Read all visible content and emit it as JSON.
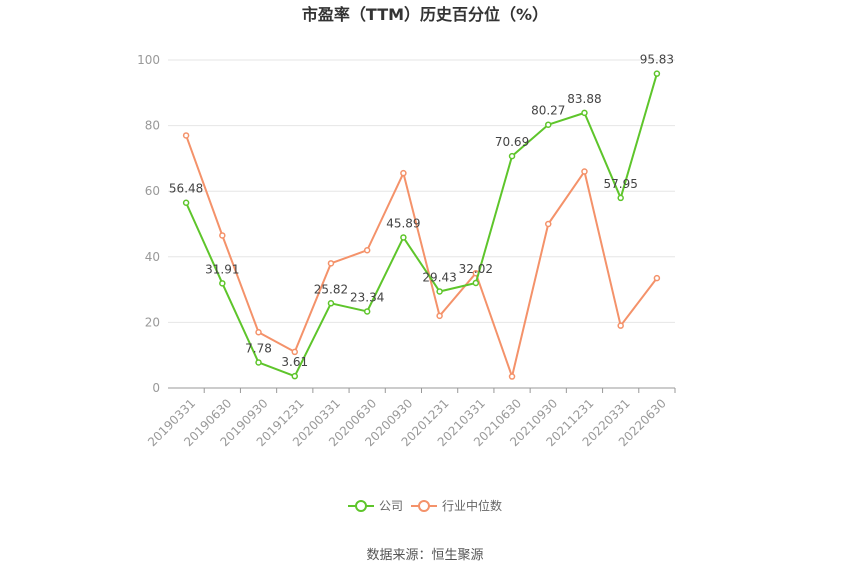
{
  "chart_data": {
    "type": "line",
    "title": "市盈率（TTM）历史百分位（%）",
    "categories": [
      "20190331",
      "20190630",
      "20190930",
      "20191231",
      "20200331",
      "20200630",
      "20200930",
      "20201231",
      "20210331",
      "20210630",
      "20210930",
      "20211231",
      "20220331",
      "20220630"
    ],
    "ylim": [
      0,
      100
    ],
    "yticks": [
      0,
      20,
      40,
      60,
      80,
      100
    ],
    "grid": true,
    "legend_position": "bottom",
    "series": [
      {
        "name": "公司",
        "color": "#5ec52b",
        "values": [
          56.48,
          31.91,
          7.78,
          3.61,
          25.82,
          23.34,
          45.89,
          29.43,
          32.02,
          70.69,
          80.27,
          83.88,
          57.95,
          95.83
        ],
        "labels": [
          "56.48",
          "31.91",
          "7.78",
          "3.61",
          "25.82",
          "23.34",
          "45.89",
          "29.43",
          "32.02",
          "70.69",
          "80.27",
          "83.88",
          "57.95",
          "95.83"
        ]
      },
      {
        "name": "行业中位数",
        "color": "#f4926a",
        "values": [
          77,
          46.5,
          17,
          11,
          38,
          42,
          65.5,
          22,
          35,
          3.5,
          50,
          66,
          19,
          33.5
        ]
      }
    ]
  },
  "source": "数据来源：恒生聚源"
}
